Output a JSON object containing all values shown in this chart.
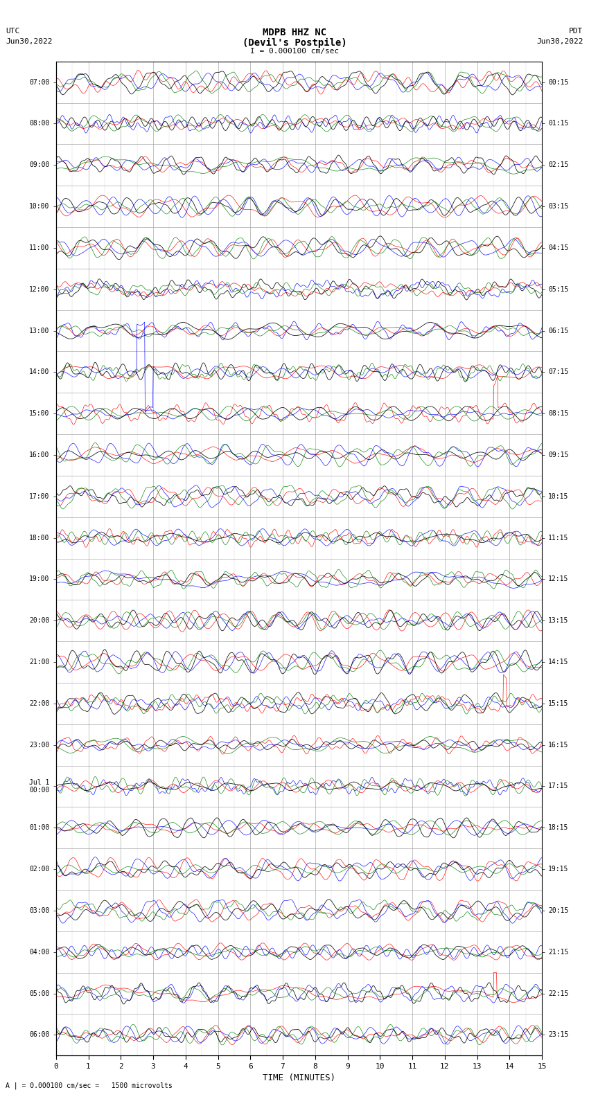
{
  "title_line1": "MDPB HHZ NC",
  "title_line2": "(Devil's Postpile)",
  "scale_label": "I = 0.000100 cm/sec",
  "left_label_top": "UTC",
  "left_label_date": "Jun30,2022",
  "right_label_top": "PDT",
  "right_label_date": "Jun30,2022",
  "bottom_label": "TIME (MINUTES)",
  "footer_label": "A | = 0.000100 cm/sec =   1500 microvolts",
  "utc_times": [
    "07:00",
    "08:00",
    "09:00",
    "10:00",
    "11:00",
    "12:00",
    "13:00",
    "14:00",
    "15:00",
    "16:00",
    "17:00",
    "18:00",
    "19:00",
    "20:00",
    "21:00",
    "22:00",
    "23:00",
    "Jul 1\n00:00",
    "01:00",
    "02:00",
    "03:00",
    "04:00",
    "05:00",
    "06:00"
  ],
  "pdt_times": [
    "00:15",
    "01:15",
    "02:15",
    "03:15",
    "04:15",
    "05:15",
    "06:15",
    "07:15",
    "08:15",
    "09:15",
    "10:15",
    "11:15",
    "12:15",
    "13:15",
    "14:15",
    "15:15",
    "16:15",
    "17:15",
    "18:15",
    "19:15",
    "20:15",
    "21:15",
    "22:15",
    "23:15"
  ],
  "n_rows": 24,
  "n_minutes": 15,
  "colors": [
    "red",
    "blue",
    "green",
    "black"
  ],
  "bg_color": "#ffffff",
  "grid_color": "#aaaaaa",
  "fig_width": 8.5,
  "fig_height": 16.13
}
